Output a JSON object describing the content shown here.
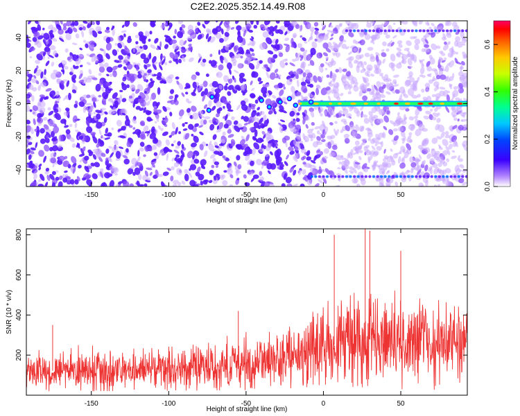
{
  "title": "C2E2.2025.352.14.49.R08",
  "chart_data": [
    {
      "type": "heatmap",
      "xlabel": "Height of straight line (km)",
      "ylabel": "Frequency (Hz)",
      "xlim": [
        -192,
        93
      ],
      "ylim": [
        -50,
        50
      ],
      "x_ticks": [
        -150,
        -100,
        -50,
        0,
        50
      ],
      "y_ticks": [
        -40,
        -20,
        0,
        20,
        40
      ],
      "colorbar": {
        "label": "Normalized spectral amplitude",
        "range": [
          0,
          0.7
        ],
        "ticks": [
          0.0,
          0.2,
          0.4,
          0.6
        ],
        "tick_labels": [
          "0.0",
          "0.2",
          "0.4",
          "0.6"
        ],
        "colors": [
          "#ffffff",
          "#8a2be2",
          "#3300ff",
          "#0066ff",
          "#00ccff",
          "#00ff99",
          "#33ff00",
          "#ccff00",
          "#ffcc00",
          "#ff6600",
          "#ff0000",
          "#ff0066"
        ]
      },
      "features": [
        {
          "kind": "tone",
          "frequency_hz": 0,
          "x_from": -15,
          "x_to": 93
        },
        {
          "kind": "tone",
          "frequency_hz": 44,
          "x_from": 15,
          "x_to": 93
        },
        {
          "kind": "tone",
          "frequency_hz": -44,
          "x_from": -10,
          "x_to": 93
        }
      ]
    },
    {
      "type": "line",
      "xlabel": "Height of straight line (km)",
      "ylabel": "SNR (10 * v/v)",
      "xlim": [
        -192,
        93
      ],
      "ylim": [
        0,
        830
      ],
      "x_ticks": [
        -150,
        -100,
        -50,
        0,
        50
      ],
      "y_ticks": [
        200,
        400,
        600,
        800
      ],
      "series_color": "#ee3333",
      "envelope": [
        {
          "x": -192,
          "low": 40,
          "mid": 120,
          "high": 230
        },
        {
          "x": -150,
          "low": 40,
          "mid": 125,
          "high": 250
        },
        {
          "x": -100,
          "low": 45,
          "mid": 130,
          "high": 260
        },
        {
          "x": -50,
          "low": 50,
          "mid": 150,
          "high": 300
        },
        {
          "x": -20,
          "low": 70,
          "mid": 190,
          "high": 400
        },
        {
          "x": 0,
          "low": 90,
          "mid": 240,
          "high": 480
        },
        {
          "x": 25,
          "low": 80,
          "mid": 280,
          "high": 560
        },
        {
          "x": 50,
          "low": 60,
          "mid": 270,
          "high": 540
        },
        {
          "x": 93,
          "low": 50,
          "mid": 260,
          "high": 520
        }
      ],
      "peaks": [
        {
          "x": 27,
          "y": 830
        },
        {
          "x": 30,
          "y": 820
        },
        {
          "x": 7,
          "y": 800
        },
        {
          "x": 50,
          "y": 720
        },
        {
          "x": -55,
          "y": 420
        },
        {
          "x": -175,
          "y": 350
        }
      ]
    }
  ]
}
